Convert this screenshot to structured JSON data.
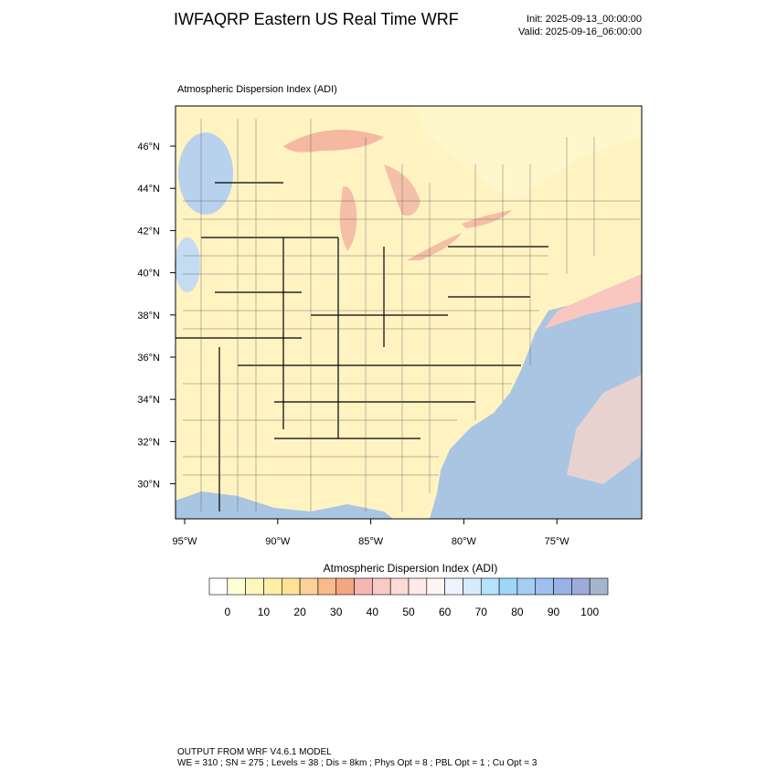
{
  "header": {
    "title": "IWFAQRP Eastern US Real Time WRF",
    "init": "Init: 2025-09-13_00:00:00",
    "valid": "Valid: 2025-09-16_06:00:00"
  },
  "map": {
    "title": "Atmospheric Dispersion Index   (ADI)",
    "lat_labels": [
      "46°N",
      "44°N",
      "42°N",
      "40°N",
      "38°N",
      "36°N",
      "34°N",
      "32°N",
      "30°N"
    ],
    "lon_labels": [
      "95°W",
      "90°W",
      "85°W",
      "80°W",
      "75°W"
    ]
  },
  "colorbar": {
    "title": "Atmospheric Dispersion Index  (ADI)",
    "labels": [
      0,
      10,
      20,
      30,
      40,
      50,
      60,
      70,
      80,
      90,
      100
    ],
    "colors": [
      "#ffffff",
      "#ffffd4",
      "#fff6bd",
      "#ffeea6",
      "#ffe294",
      "#fdd09a",
      "#f9b98c",
      "#f4a582",
      "#f6b7b2",
      "#f9c9c6",
      "#fbdad8",
      "#fde9e8",
      "#fff4f4",
      "#eef4ff",
      "#d6ecfc",
      "#b6e2fb",
      "#9dd6f6",
      "#a6cdf2",
      "#9fbfee",
      "#97b2e6",
      "#9dabd8",
      "#a5b6cc"
    ]
  },
  "footer": {
    "line1": "OUTPUT FROM WRF V4.6.1 MODEL",
    "line2": "WE = 310 ; SN = 275 ; Levels = 38 ; Dis = 8km ; Phys Opt = 8 ; PBL Opt = 1 ; Cu Opt = 3"
  }
}
